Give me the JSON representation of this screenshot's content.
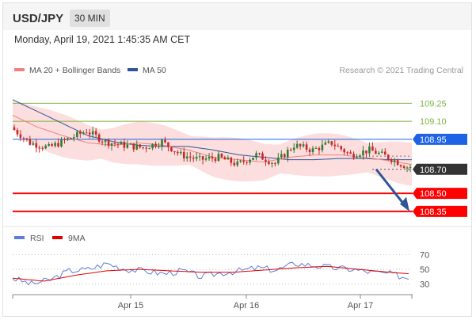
{
  "header": {
    "symbol": "USD/JPY",
    "timeframe": "30 MIN"
  },
  "timestamp": "Monday, April 19, 2021 1:45:35 AM CET",
  "legend": {
    "ma20": "MA 20 + Bollinger Bands",
    "ma50": "MA 50",
    "copyright": "Research © 2021 Trading Central",
    "rsi": "RSI",
    "ma9": "9MA"
  },
  "colors": {
    "ma20": "#f08080",
    "bollinger_fill": "#fbd6d6",
    "ma50": "#2f5597",
    "candle_up": "#2e7d32",
    "candle_down": "#c62828",
    "resistance": "#7cb342",
    "pivot": "#1e63e6",
    "support": "#ff0000",
    "last_price_tag": "#333333",
    "arrow": "#2f5597",
    "rsi_line": "#5b7fd6",
    "rsi_ma": "#e00000"
  },
  "chart_data": [
    {
      "type": "line",
      "title": "USD/JPY 30 MIN",
      "x_labels": [
        "Apr 15",
        "Apr 16",
        "Apr 17"
      ],
      "ylim": [
        108.25,
        109.45
      ],
      "grid": false,
      "legend_position": "top-left",
      "levels": [
        {
          "name": "resistance",
          "value": 109.25,
          "label": "109.25"
        },
        {
          "name": "resistance",
          "value": 109.1,
          "label": "109.10"
        },
        {
          "name": "pivot",
          "value": 108.95,
          "label": "108.95"
        },
        {
          "name": "last",
          "value": 108.7,
          "label": "108.70"
        },
        {
          "name": "support",
          "value": 108.5,
          "label": "108.50"
        },
        {
          "name": "support",
          "value": 108.35,
          "label": "108.35"
        }
      ],
      "series": [
        {
          "name": "MA 20 + Bollinger Bands",
          "points": [
            [
              0,
              109.15
            ],
            [
              8,
              109.05
            ],
            [
              16,
              108.98
            ],
            [
              24,
              108.92
            ],
            [
              32,
              108.9
            ],
            [
              40,
              108.92
            ],
            [
              48,
              108.9
            ],
            [
              56,
              108.86
            ],
            [
              64,
              108.8
            ],
            [
              72,
              108.78
            ],
            [
              80,
              108.76
            ],
            [
              88,
              108.8
            ],
            [
              96,
              108.82
            ],
            [
              104,
              108.82
            ],
            [
              112,
              108.8
            ],
            [
              120,
              108.77
            ],
            [
              127,
              108.74
            ]
          ]
        },
        {
          "name": "MA 50",
          "points": [
            [
              0,
              109.28
            ],
            [
              8,
              109.18
            ],
            [
              16,
              109.08
            ],
            [
              24,
              108.98
            ],
            [
              32,
              108.93
            ],
            [
              40,
              108.9
            ],
            [
              48,
              108.89
            ],
            [
              56,
              108.89
            ],
            [
              64,
              108.86
            ],
            [
              72,
              108.82
            ],
            [
              80,
              108.8
            ],
            [
              88,
              108.78
            ],
            [
              96,
              108.78
            ],
            [
              104,
              108.79
            ],
            [
              112,
              108.79
            ],
            [
              120,
              108.78
            ],
            [
              127,
              108.78
            ]
          ]
        },
        {
          "name": "price",
          "points": [
            [
              0,
              109.05
            ],
            [
              6,
              108.92
            ],
            [
              12,
              108.88
            ],
            [
              18,
              108.95
            ],
            [
              24,
              109.02
            ],
            [
              30,
              108.93
            ],
            [
              36,
              108.9
            ],
            [
              42,
              108.88
            ],
            [
              48,
              108.93
            ],
            [
              54,
              108.82
            ],
            [
              60,
              108.78
            ],
            [
              66,
              108.8
            ],
            [
              72,
              108.74
            ],
            [
              78,
              108.82
            ],
            [
              84,
              108.75
            ],
            [
              90,
              108.9
            ],
            [
              96,
              108.86
            ],
            [
              102,
              108.92
            ],
            [
              108,
              108.82
            ],
            [
              114,
              108.86
            ],
            [
              120,
              108.8
            ],
            [
              126,
              108.72
            ]
          ]
        }
      ]
    },
    {
      "type": "line",
      "title": "RSI",
      "ylim": [
        20,
        80
      ],
      "y_ticks": [
        70,
        50,
        30
      ],
      "series": [
        {
          "name": "RSI",
          "points": [
            [
              0,
              38
            ],
            [
              6,
              30
            ],
            [
              12,
              36
            ],
            [
              18,
              48
            ],
            [
              24,
              50
            ],
            [
              30,
              58
            ],
            [
              36,
              50
            ],
            [
              42,
              48
            ],
            [
              48,
              44
            ],
            [
              54,
              48
            ],
            [
              60,
              40
            ],
            [
              66,
              45
            ],
            [
              72,
              48
            ],
            [
              78,
              52
            ],
            [
              84,
              49
            ],
            [
              90,
              58
            ],
            [
              96,
              55
            ],
            [
              102,
              52
            ],
            [
              108,
              50
            ],
            [
              114,
              46
            ],
            [
              120,
              44
            ],
            [
              126,
              38
            ]
          ]
        },
        {
          "name": "9MA",
          "points": [
            [
              0,
              38
            ],
            [
              10,
              34
            ],
            [
              20,
              42
            ],
            [
              30,
              48
            ],
            [
              40,
              50
            ],
            [
              50,
              48
            ],
            [
              60,
              46
            ],
            [
              70,
              46
            ],
            [
              80,
              49
            ],
            [
              90,
              52
            ],
            [
              100,
              54
            ],
            [
              110,
              50
            ],
            [
              120,
              46
            ],
            [
              126,
              44
            ]
          ]
        }
      ]
    }
  ]
}
